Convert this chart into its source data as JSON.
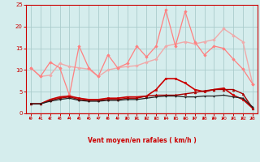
{
  "x": [
    0,
    1,
    2,
    3,
    4,
    5,
    6,
    7,
    8,
    9,
    10,
    11,
    12,
    13,
    14,
    15,
    16,
    17,
    18,
    19,
    20,
    21,
    22,
    23
  ],
  "series": [
    {
      "name": "smooth_light_pink",
      "color": "#F0AAAA",
      "lw": 1.0,
      "marker": "D",
      "markersize": 1.8,
      "values": [
        10.5,
        8.5,
        8.8,
        11.5,
        10.8,
        10.5,
        10.2,
        8.5,
        10.0,
        10.5,
        10.8,
        11.0,
        11.8,
        12.5,
        15.5,
        16.0,
        16.5,
        16.0,
        16.5,
        17.0,
        19.5,
        18.0,
        16.5,
        6.8
      ]
    },
    {
      "name": "jagged_pink",
      "color": "#FF8080",
      "lw": 0.9,
      "marker": "D",
      "markersize": 1.8,
      "values": [
        10.5,
        8.5,
        11.8,
        10.5,
        4.2,
        15.5,
        10.5,
        8.5,
        13.5,
        10.5,
        11.5,
        15.5,
        13.0,
        15.5,
        23.8,
        15.5,
        23.5,
        16.5,
        13.5,
        15.5,
        15.0,
        12.5,
        10.2,
        6.8
      ]
    },
    {
      "name": "dark_red_mid",
      "color": "#CC0000",
      "lw": 1.2,
      "marker": "s",
      "markersize": 2.0,
      "values": [
        2.2,
        2.2,
        3.2,
        3.8,
        4.0,
        3.5,
        3.2,
        3.2,
        3.5,
        3.5,
        3.8,
        3.8,
        4.0,
        5.5,
        8.0,
        8.0,
        7.0,
        5.5,
        5.0,
        5.5,
        5.8,
        4.2,
        3.2,
        1.2
      ]
    },
    {
      "name": "dark_red_flat",
      "color": "#AA0000",
      "lw": 1.0,
      "marker": "^",
      "markersize": 2.0,
      "values": [
        2.2,
        2.2,
        3.0,
        3.5,
        3.8,
        3.2,
        3.0,
        3.0,
        3.2,
        3.2,
        3.5,
        3.5,
        4.0,
        4.2,
        4.2,
        4.2,
        4.5,
        4.8,
        5.2,
        5.5,
        5.5,
        5.5,
        4.5,
        1.2
      ]
    },
    {
      "name": "black_flat",
      "color": "#222222",
      "lw": 0.9,
      "marker": ".",
      "markersize": 1.8,
      "values": [
        2.2,
        2.2,
        2.8,
        3.2,
        3.5,
        3.0,
        2.8,
        2.8,
        3.0,
        3.0,
        3.2,
        3.2,
        3.5,
        3.8,
        4.0,
        4.0,
        3.8,
        3.8,
        4.0,
        4.0,
        4.2,
        3.8,
        3.5,
        1.5
      ]
    }
  ],
  "xlabel": "Vent moyen/en rafales ( km/h )",
  "xlim": [
    -0.5,
    23.5
  ],
  "ylim": [
    0,
    25
  ],
  "yticks": [
    0,
    5,
    10,
    15,
    20,
    25
  ],
  "xticks": [
    0,
    1,
    2,
    3,
    4,
    5,
    6,
    7,
    8,
    9,
    10,
    11,
    12,
    13,
    14,
    15,
    16,
    17,
    18,
    19,
    20,
    21,
    22,
    23
  ],
  "background_color": "#D5EDED",
  "grid_color": "#AACCCC",
  "axis_color": "#CC0000",
  "text_color": "#CC0000",
  "figsize": [
    3.2,
    2.0
  ],
  "dpi": 100
}
